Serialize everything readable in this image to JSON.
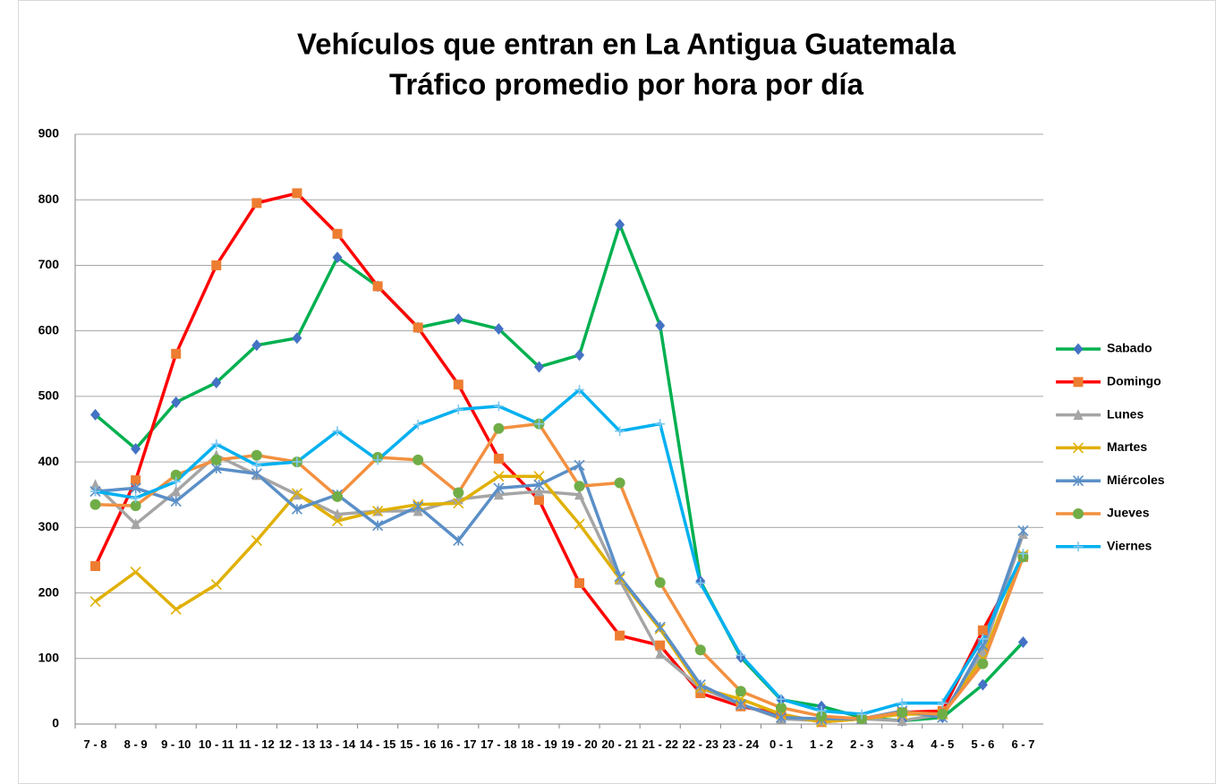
{
  "chart_data": {
    "type": "line",
    "title": [
      "Vehículos que entran en La Antigua Guatemala",
      "Tráfico promedio por hora por día"
    ],
    "categories": [
      "7 - 8",
      "8 - 9",
      "9 - 10",
      "10 - 11",
      "11 - 12",
      "12 - 13",
      "13 - 14",
      "14 - 15",
      "15 - 16",
      "16 - 17",
      "17 - 18",
      "18 - 19",
      "19 - 20",
      "20 - 21",
      "21 - 22",
      "22 - 23",
      "23 - 24",
      "0 - 1",
      "1 - 2",
      "2 - 3",
      "3 - 4",
      "4 - 5",
      "5 - 6",
      "6 - 7"
    ],
    "ylim": [
      0,
      900
    ],
    "yticks": [
      0,
      100,
      200,
      300,
      400,
      500,
      600,
      700,
      800,
      900
    ],
    "grid": true,
    "legend": "right",
    "series": [
      {
        "name": "Sabado",
        "color": "#00b050",
        "marker": "diamond",
        "marker_color": "#4472c4",
        "values": [
          472,
          420,
          491,
          521,
          578,
          589,
          712,
          668,
          605,
          618,
          603,
          545,
          563,
          762,
          608,
          218,
          102,
          37,
          27,
          10,
          5,
          10,
          60,
          125
        ]
      },
      {
        "name": "Domingo",
        "color": "#ff0000",
        "marker": "square",
        "marker_color": "#ed7d31",
        "values": [
          241,
          372,
          565,
          700,
          795,
          810,
          748,
          668,
          605,
          518,
          405,
          342,
          215,
          135,
          120,
          47,
          27,
          15,
          3,
          8,
          18,
          20,
          143,
          255
        ]
      },
      {
        "name": "Lunes",
        "color": "#a5a5a5",
        "marker": "triangle",
        "marker_color": "#a5a5a5",
        "values": [
          365,
          305,
          355,
          410,
          380,
          350,
          320,
          325,
          325,
          343,
          350,
          355,
          350,
          220,
          107,
          55,
          30,
          8,
          5,
          8,
          5,
          15,
          110,
          290
        ]
      },
      {
        "name": "Martes",
        "color": "#e0b000",
        "marker": "x",
        "marker_color": "#e0b000",
        "values": [
          187,
          232,
          175,
          213,
          280,
          352,
          310,
          325,
          335,
          337,
          378,
          378,
          305,
          222,
          145,
          55,
          38,
          15,
          3,
          8,
          15,
          15,
          100,
          258
        ]
      },
      {
        "name": "Miércoles",
        "color": "#5b8fc7",
        "marker": "star",
        "marker_color": "#5b8fc7",
        "values": [
          355,
          360,
          340,
          390,
          382,
          328,
          350,
          303,
          332,
          280,
          360,
          365,
          395,
          225,
          148,
          60,
          30,
          10,
          8,
          8,
          20,
          10,
          120,
          295
        ]
      },
      {
        "name": "Jueves",
        "color": "#f39040",
        "marker": "circle",
        "marker_color": "#70ad47",
        "values": [
          335,
          333,
          380,
          403,
          410,
          400,
          347,
          407,
          403,
          353,
          451,
          458,
          363,
          368,
          216,
          113,
          50,
          25,
          12,
          8,
          18,
          15,
          92,
          255
        ]
      },
      {
        "name": "Viernes",
        "color": "#00b0f0",
        "marker": "plus",
        "marker_color": "#7fc8f0",
        "values": [
          355,
          345,
          370,
          427,
          395,
          400,
          447,
          403,
          457,
          480,
          485,
          458,
          510,
          447,
          458,
          215,
          105,
          38,
          20,
          15,
          32,
          32,
          130,
          260
        ]
      }
    ]
  }
}
